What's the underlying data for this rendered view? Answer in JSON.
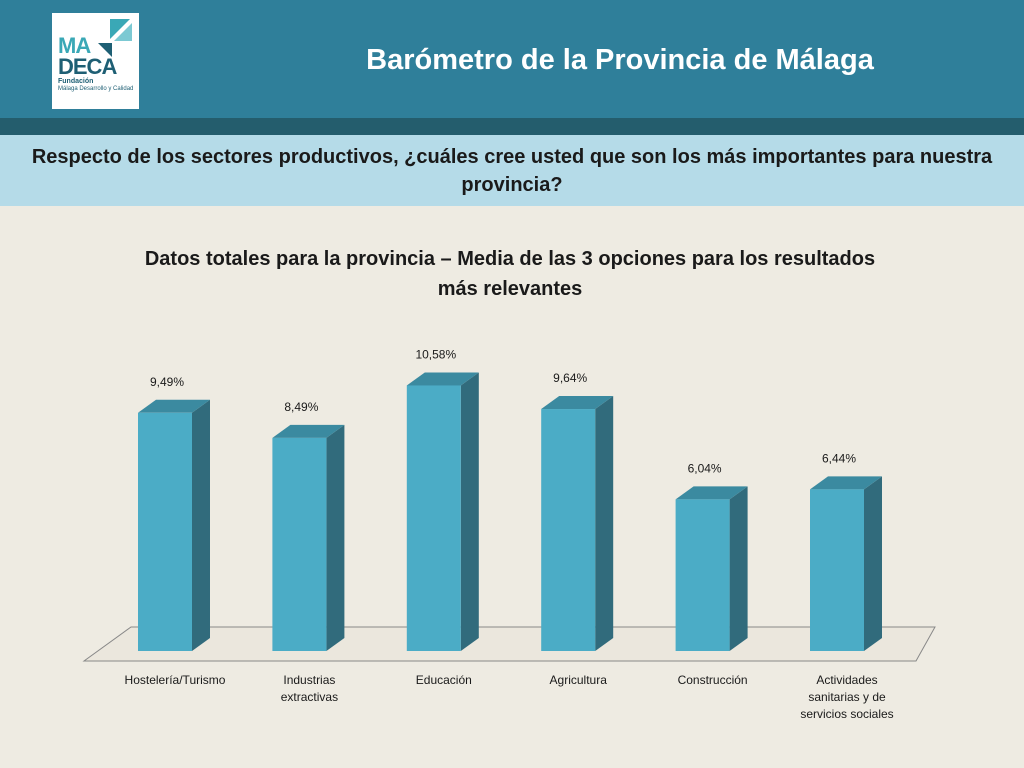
{
  "header": {
    "title": "Barómetro de la Provincia de Málaga",
    "logo": {
      "line1": "MA",
      "line2": "DECA",
      "line3": "Fundación",
      "line4": "Málaga Desarrollo y Calidad"
    }
  },
  "question": "Respecto de los sectores productivos, ¿cuáles cree usted que son los más importantes para nuestra provincia?",
  "colors": {
    "bar_front": "#4bacc6",
    "bar_side": "#316b7c",
    "bar_top": "#3b8aa0",
    "header": "#2f7f9a",
    "band": "#b5dbe8"
  },
  "chart_data": {
    "type": "bar",
    "title": "Datos totales para la provincia – Media de las 3 opciones para los resultados más relevantes",
    "categories": [
      "Hostelería/Turismo",
      "Industrias extractivas",
      "Educación",
      "Agricultura",
      "Construcción",
      "Actividades sanitarias y de servicios sociales"
    ],
    "values": [
      9.49,
      8.49,
      10.58,
      9.64,
      6.04,
      6.44
    ],
    "data_labels": [
      "9,49%",
      "8,49%",
      "10,58%",
      "9,64%",
      "6,04%",
      "6,44%"
    ],
    "unit": "%",
    "ylim": [
      0,
      11
    ],
    "grid": false,
    "legend": "none",
    "style": "3d-column"
  }
}
